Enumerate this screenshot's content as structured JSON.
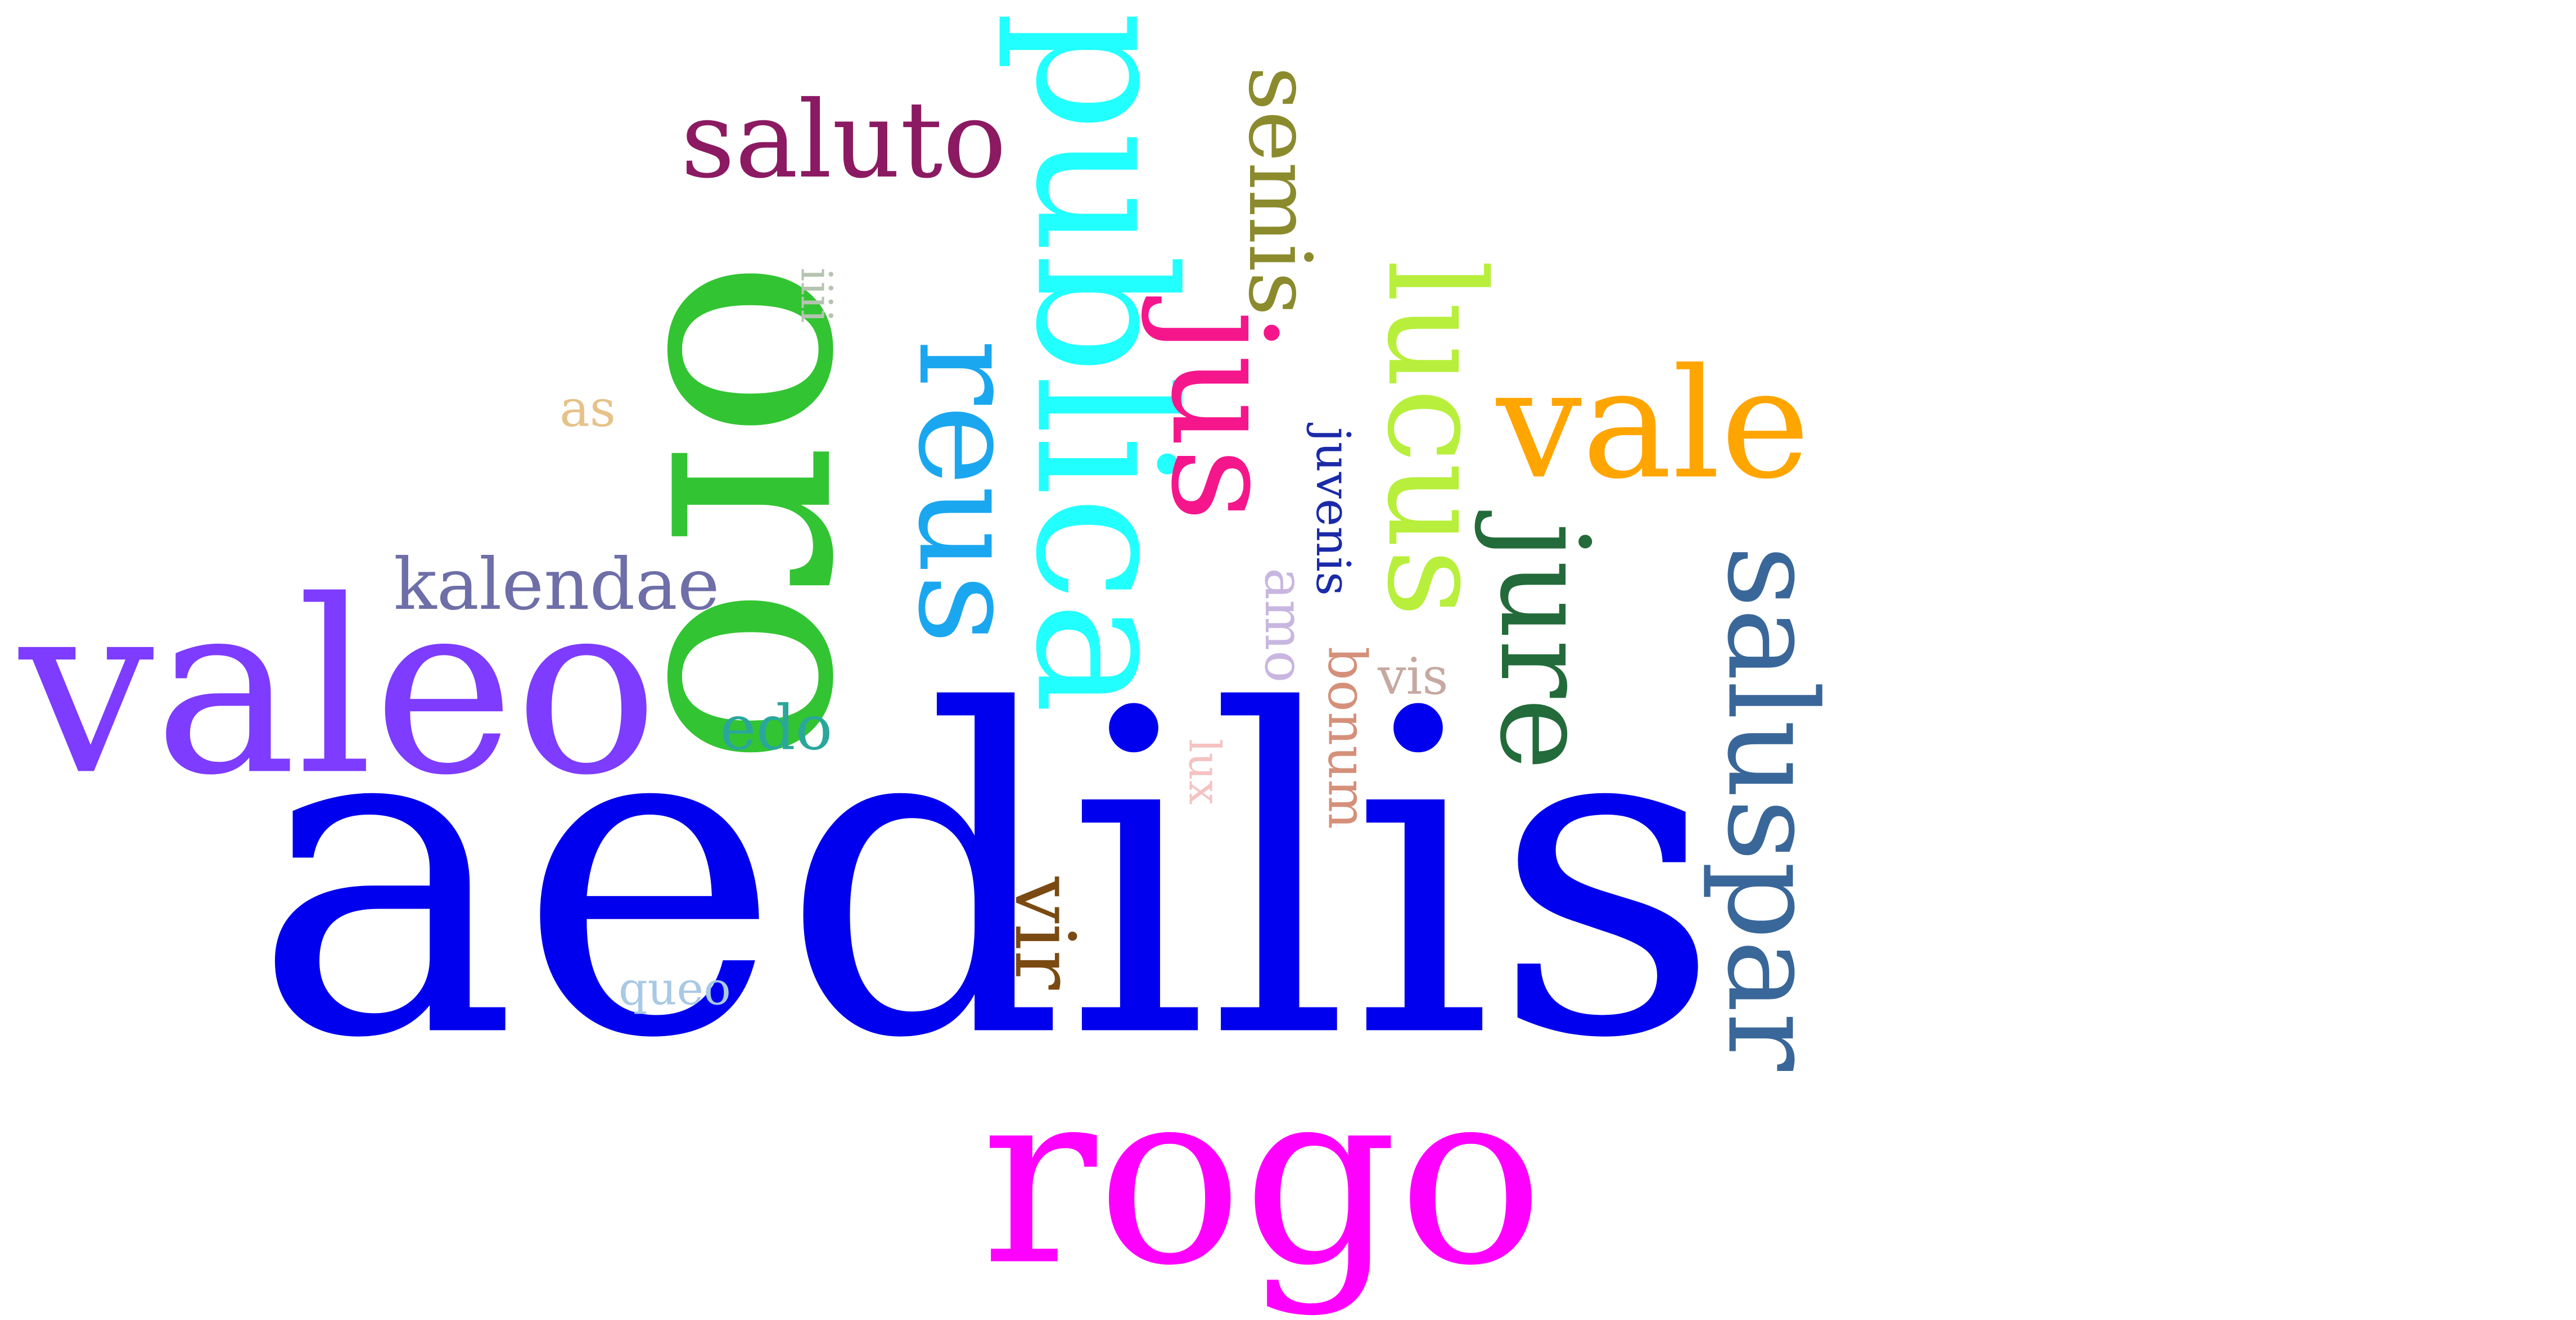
{
  "words": [
    {
      "key": "aedilis",
      "text": "aedilis",
      "color": "#0000ee"
    },
    {
      "key": "oro",
      "text": "oro",
      "color": "#33c433"
    },
    {
      "key": "publica",
      "text": "publica",
      "color": "#22ffff"
    },
    {
      "key": "rogo",
      "text": "rogo",
      "color": "#ff00ff"
    },
    {
      "key": "valeo",
      "text": "valeo",
      "color": "#7d3cff"
    },
    {
      "key": "vale",
      "text": "vale",
      "color": "#ffa500"
    },
    {
      "key": "reus",
      "text": "reus",
      "color": "#1aa7f0"
    },
    {
      "key": "saluto",
      "text": "saluto",
      "color": "#8b1a62"
    },
    {
      "key": "lucus",
      "text": "lucus",
      "color": "#b8ef3c"
    },
    {
      "key": "semis",
      "text": "semis",
      "color": "#8b8b2e"
    },
    {
      "key": "jus",
      "text": "jus",
      "color": "#f5168c"
    },
    {
      "key": "jure",
      "text": "jure",
      "color": "#236b3a"
    },
    {
      "key": "saluspar",
      "text": "saluspar",
      "color": "#3a6799"
    },
    {
      "key": "kalendae",
      "text": "kalendae",
      "color": "#6e6ea8"
    },
    {
      "key": "edo",
      "text": "edo",
      "color": "#2aa79b"
    },
    {
      "key": "vir",
      "text": "vir",
      "color": "#7a4a12"
    },
    {
      "key": "bonum",
      "text": "bonum",
      "color": "#d5907a"
    },
    {
      "key": "juvenis",
      "text": "juvenis",
      "color": "#1a2aa8"
    },
    {
      "key": "amo",
      "text": "amo",
      "color": "#c9b6e0"
    },
    {
      "key": "vis",
      "text": "vis",
      "color": "#c6a9a0"
    },
    {
      "key": "lux",
      "text": "lux",
      "color": "#f5c2c2"
    },
    {
      "key": "queo",
      "text": "queo",
      "color": "#a9c9e4"
    },
    {
      "key": "iiii",
      "text": "iiii",
      "color": "#b5c4b0"
    },
    {
      "key": "as",
      "text": "as",
      "color": "#e6c28a"
    }
  ]
}
